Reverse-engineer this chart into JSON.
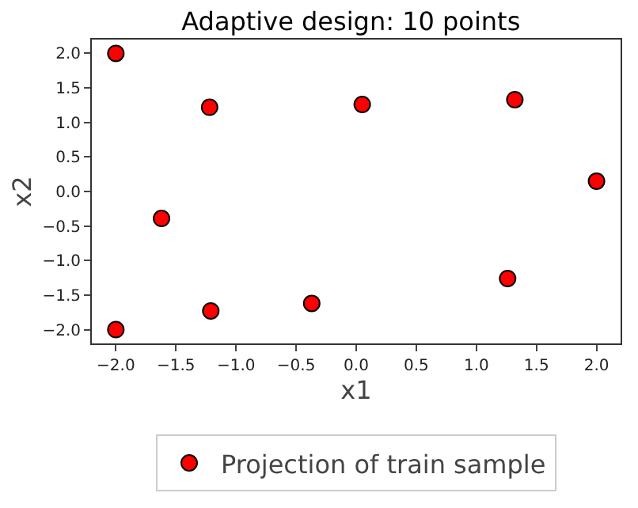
{
  "chart_data": {
    "type": "scatter",
    "title": "Adaptive design: 10 points",
    "xlabel": "x1",
    "ylabel": "x2",
    "x": [
      -2,
      -2,
      -1.62,
      -1.22,
      -1.21,
      -0.37,
      0.05,
      1.32,
      1.26,
      2
    ],
    "series": [
      {
        "name": "Projection of train sample",
        "color": "#ff0000",
        "values": [
          2,
          -2,
          -0.39,
          1.22,
          -1.73,
          -1.62,
          1.26,
          1.33,
          -1.26,
          0.15
        ]
      }
    ],
    "xlim": [
      -2.2,
      2.2
    ],
    "ylim": [
      -2.2,
      2.2
    ],
    "xticks": [
      {
        "value": -2,
        "label": "−2.0"
      },
      {
        "value": -1.5,
        "label": "−1.5"
      },
      {
        "value": -1,
        "label": "−1.0"
      },
      {
        "value": -0.5,
        "label": "−0.5"
      },
      {
        "value": 0,
        "label": "0.0"
      },
      {
        "value": 0.5,
        "label": "0.5"
      },
      {
        "value": 1,
        "label": "1.0"
      },
      {
        "value": 1.5,
        "label": "1.5"
      },
      {
        "value": 2,
        "label": "2.0"
      }
    ],
    "yticks": [
      {
        "value": -2,
        "label": "−2.0"
      },
      {
        "value": -1.5,
        "label": "−1.5"
      },
      {
        "value": -1,
        "label": "−1.0"
      },
      {
        "value": -0.5,
        "label": "−0.5"
      },
      {
        "value": 0,
        "label": "0.0"
      },
      {
        "value": 0.5,
        "label": "0.5"
      },
      {
        "value": 1,
        "label": "1.0"
      },
      {
        "value": 1.5,
        "label": "1.5"
      },
      {
        "value": 2,
        "label": "2.0"
      }
    ],
    "marker": "circle",
    "legend": "bottom",
    "grid": false
  }
}
